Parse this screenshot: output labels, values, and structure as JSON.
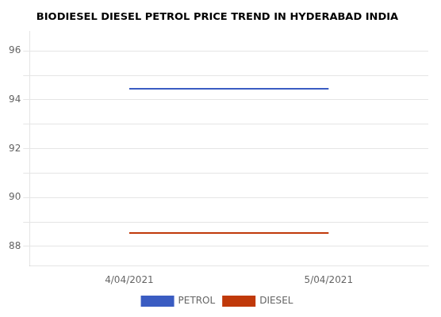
{
  "chart_data": {
    "type": "line",
    "title": "BIODIESEL DIESEL PETROL PRICE TREND IN HYDERABAD INDIA",
    "categories": [
      "4/04/2021",
      "5/04/2021"
    ],
    "series": [
      {
        "name": "PETROL",
        "color": "#3A5CC2",
        "values": [
          94.45,
          94.45
        ]
      },
      {
        "name": "DIESEL",
        "color": "#C0390A",
        "values": [
          88.55,
          88.55
        ]
      }
    ],
    "ylim": [
      87.2,
      96.8
    ],
    "yticks": [
      88,
      {
        "value": 89,
        "label": ""
      },
      90,
      {
        "value": 91,
        "label": ""
      },
      92,
      {
        "value": 93,
        "label": ""
      },
      94,
      {
        "value": 95,
        "label": ""
      },
      96
    ],
    "grid": true,
    "legend": "bottom",
    "marker": "none"
  }
}
